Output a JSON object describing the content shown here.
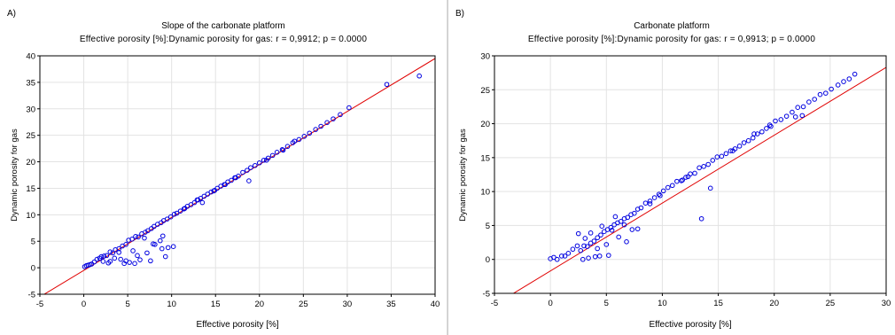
{
  "chart_data": [
    {
      "type": "scatter",
      "panel_label": "A)",
      "title": "Slope of the carbonate platform",
      "subtitle": "Effective porosity [%]:Dynamic porosity for gas:   r = 0,9912; p = 0.0000",
      "xlabel": "Effective porosity [%]",
      "ylabel": "Dynamic porosity for gas",
      "xlim": [
        -5,
        40
      ],
      "ylim": [
        -5,
        40
      ],
      "xticks": [
        -5,
        0,
        5,
        10,
        15,
        20,
        25,
        30,
        35,
        40
      ],
      "yticks": [
        -5,
        0,
        5,
        10,
        15,
        20,
        25,
        30,
        35,
        40
      ],
      "grid": true,
      "fit_line": {
        "slope": 1.0,
        "intercept": -0.5
      },
      "series": [
        {
          "x": [
            0.1,
            0.3,
            0.5,
            0.7,
            0.9,
            1.2,
            1.5,
            1.8,
            2.0,
            2.3,
            2.6,
            3.0,
            3.3,
            3.6,
            4.0,
            4.4,
            4.8,
            5.1,
            5.5,
            5.9,
            6.2,
            6.6,
            7.0,
            7.3,
            7.7,
            8.0,
            8.4,
            8.8,
            9.1,
            9.5,
            9.9,
            10.3,
            10.6,
            11.0,
            11.4,
            11.8,
            12.2,
            12.6,
            13.0,
            13.3,
            13.7,
            14.1,
            14.5,
            14.9,
            15.2,
            15.6,
            16.0,
            16.4,
            16.8,
            17.2,
            17.6,
            18.1,
            18.6,
            19.0,
            19.5,
            20.0,
            20.5,
            21.0,
            21.5,
            22.0,
            22.6,
            23.2,
            23.8,
            24.5,
            25.1,
            25.7,
            26.4,
            27.0,
            27.7,
            28.4,
            29.2,
            30.2,
            34.5,
            38.2,
            2.2,
            2.8,
            3.5,
            4.0,
            4.6,
            5.2,
            5.6,
            6.1,
            6.4,
            7.2,
            7.6,
            8.1,
            8.7,
            9.0,
            9.6,
            10.2,
            3.0,
            4.2,
            4.8,
            5.8,
            6.9,
            7.9,
            8.9,
            9.3,
            11.5,
            13.5,
            16.1,
            18.8,
            22.7,
            12.9,
            14.8,
            17.3,
            20.8,
            24.0
          ],
          "y": [
            0.2,
            0.4,
            0.5,
            0.6,
            0.7,
            1.1,
            1.6,
            1.8,
            2.1,
            2.2,
            2.3,
            3.0,
            2.8,
            3.4,
            3.6,
            4.1,
            4.4,
            5.2,
            5.4,
            5.9,
            5.8,
            6.4,
            6.7,
            7.0,
            7.4,
            7.8,
            8.2,
            8.5,
            8.9,
            9.2,
            9.6,
            10.1,
            10.3,
            10.7,
            11.1,
            11.6,
            11.9,
            12.3,
            12.8,
            13.1,
            13.5,
            13.9,
            14.3,
            14.6,
            15.0,
            15.4,
            15.7,
            16.2,
            16.5,
            17.0,
            17.3,
            18.0,
            18.4,
            18.9,
            19.3,
            19.8,
            20.3,
            20.7,
            21.2,
            21.8,
            22.3,
            22.9,
            23.6,
            24.2,
            24.8,
            25.4,
            26.1,
            26.7,
            27.4,
            28.1,
            28.9,
            30.2,
            34.6,
            36.2,
            1.2,
            0.9,
            1.8,
            2.9,
            0.8,
            1.0,
            3.2,
            2.3,
            1.5,
            2.8,
            1.3,
            4.4,
            5.1,
            6.0,
            3.8,
            4.0,
            1.2,
            1.6,
            1.3,
            0.8,
            5.6,
            4.5,
            3.6,
            2.1,
            11.2,
            12.3,
            15.7,
            16.4,
            22.2,
            12.8,
            14.5,
            17.0,
            20.3,
            23.9
          ]
        }
      ]
    },
    {
      "type": "scatter",
      "panel_label": "B)",
      "title": "Carbonate platform",
      "subtitle": "Effective porosity [%]:Dynamic porosity for gas:   r = 0,9913; p = 0.0000",
      "xlabel": "Effective porosity [%]",
      "ylabel": "Dynamic porosity for gas",
      "xlim": [
        -5,
        30
      ],
      "ylim": [
        -5,
        30
      ],
      "xticks": [
        -5,
        0,
        5,
        10,
        15,
        20,
        25,
        30
      ],
      "yticks": [
        -5,
        0,
        5,
        10,
        15,
        20,
        25,
        30
      ],
      "grid": true,
      "fit_line": {
        "slope": 1.0,
        "intercept": -1.7
      },
      "series": [
        {
          "x": [
            0.0,
            0.3,
            0.6,
            1.0,
            1.3,
            1.6,
            2.0,
            2.4,
            2.7,
            3.0,
            3.3,
            3.6,
            3.9,
            4.2,
            4.5,
            4.8,
            5.1,
            5.4,
            5.7,
            6.0,
            6.3,
            6.6,
            6.9,
            7.2,
            7.5,
            7.8,
            8.1,
            8.5,
            8.9,
            9.3,
            9.7,
            10.1,
            10.5,
            10.9,
            11.3,
            11.7,
            12.1,
            12.5,
            12.9,
            13.3,
            13.7,
            14.1,
            14.5,
            14.9,
            15.3,
            15.7,
            16.1,
            16.5,
            16.9,
            17.3,
            17.7,
            18.1,
            18.5,
            18.9,
            19.3,
            19.7,
            20.1,
            20.6,
            21.1,
            21.6,
            22.1,
            22.6,
            23.1,
            23.6,
            24.1,
            24.6,
            25.1,
            25.7,
            26.2,
            26.7,
            27.2,
            2.5,
            3.1,
            3.6,
            4.2,
            4.6,
            5.0,
            5.5,
            6.1,
            6.6,
            7.3,
            5.8,
            4.4,
            3.4,
            2.9,
            4.0,
            5.2,
            6.8,
            7.8,
            13.5,
            14.3,
            11.8,
            12.3,
            9.8,
            8.9,
            16.3,
            18.2,
            22.5,
            19.6,
            21.9
          ],
          "y": [
            0.1,
            0.3,
            0.0,
            0.5,
            0.5,
            0.9,
            1.5,
            2.0,
            1.3,
            2.0,
            1.9,
            2.4,
            2.7,
            3.2,
            3.6,
            4.1,
            4.4,
            4.7,
            5.1,
            5.4,
            5.6,
            6.0,
            6.2,
            6.6,
            6.8,
            7.4,
            7.6,
            8.3,
            8.2,
            9.1,
            9.6,
            10.1,
            10.6,
            10.9,
            11.5,
            11.6,
            12.1,
            12.6,
            12.7,
            13.5,
            13.7,
            14.0,
            14.6,
            15.1,
            15.2,
            15.6,
            16.0,
            16.3,
            16.7,
            17.2,
            17.5,
            17.9,
            18.5,
            18.8,
            19.3,
            19.6,
            20.4,
            20.6,
            21.1,
            21.7,
            22.4,
            22.5,
            23.2,
            23.6,
            24.3,
            24.5,
            25.1,
            25.7,
            26.2,
            26.6,
            27.3,
            3.8,
            3.1,
            3.9,
            1.6,
            4.9,
            2.2,
            4.3,
            3.3,
            5.1,
            4.4,
            6.3,
            0.5,
            0.2,
            0.0,
            0.4,
            0.6,
            2.6,
            4.5,
            6.0,
            10.5,
            11.7,
            12.2,
            9.4,
            8.6,
            16.0,
            18.5,
            21.2,
            19.8,
            21.0
          ]
        }
      ]
    }
  ]
}
